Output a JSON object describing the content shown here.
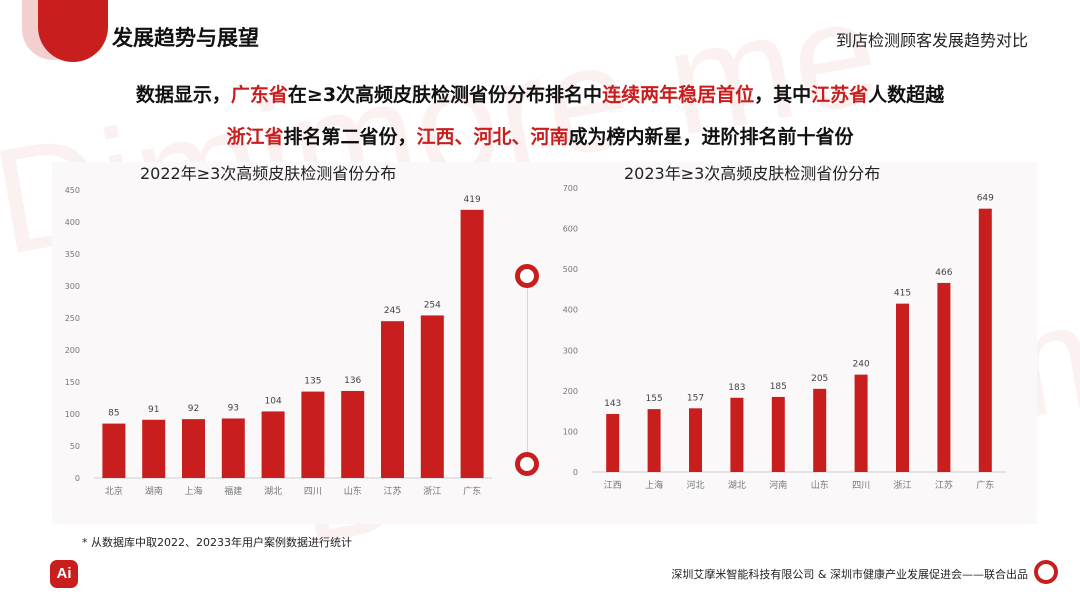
{
  "header": {
    "title": "发展趋势与展望",
    "right_title": "到店检测顾客发展趋势对比"
  },
  "summary": {
    "line1": [
      {
        "text": "数据显示，",
        "hl": false
      },
      {
        "text": "广东省",
        "hl": true
      },
      {
        "text": "在≥3次高频皮肤检测省份分布排名中",
        "hl": false
      },
      {
        "text": "连续两年稳居首位",
        "hl": true
      },
      {
        "text": "，其中",
        "hl": false
      },
      {
        "text": "江苏省",
        "hl": true
      },
      {
        "text": "人数超越",
        "hl": false
      }
    ],
    "line2": [
      {
        "text": "浙江省",
        "hl": true
      },
      {
        "text": "排名第二省份，",
        "hl": false
      },
      {
        "text": "江西、河北、河南",
        "hl": true
      },
      {
        "text": "成为榜内新星，进阶排名前十省份",
        "hl": false
      }
    ]
  },
  "colors": {
    "accent": "#c81e1e",
    "highlight": "#c81e1e"
  },
  "chart_data": [
    {
      "type": "bar",
      "title": "2022年≥3次高频皮肤检测省份分布",
      "categories": [
        "北京",
        "湖南",
        "上海",
        "福建",
        "湖北",
        "四川",
        "山东",
        "江苏",
        "浙江",
        "广东"
      ],
      "values": [
        85,
        91,
        92,
        93,
        104,
        135,
        136,
        245,
        254,
        419
      ],
      "ylim": [
        0,
        450
      ],
      "yticks": [
        0,
        50,
        100,
        150,
        200,
        250,
        300,
        350,
        400,
        450
      ],
      "xlabel": "",
      "ylabel": "",
      "grid": false
    },
    {
      "type": "bar",
      "title": "2023年≥3次高频皮肤检测省份分布",
      "categories": [
        "江西",
        "上海",
        "河北",
        "湖北",
        "河南",
        "山东",
        "四川",
        "浙江",
        "江苏",
        "广东"
      ],
      "values": [
        143,
        155,
        157,
        183,
        185,
        205,
        240,
        415,
        466,
        649
      ],
      "ylim": [
        0,
        700
      ],
      "yticks": [
        0,
        100,
        200,
        300,
        400,
        500,
        600,
        700
      ],
      "xlabel": "",
      "ylabel": "",
      "grid": false
    }
  ],
  "footnote": "* 从数据库中取2022、20233年用户案例数据进行统计",
  "credit": "深圳艾摩米智能科技有限公司 & 深圳市健康产业发展促进会——联合出品",
  "logo_text": "Ai",
  "watermark": "Dimimore me"
}
